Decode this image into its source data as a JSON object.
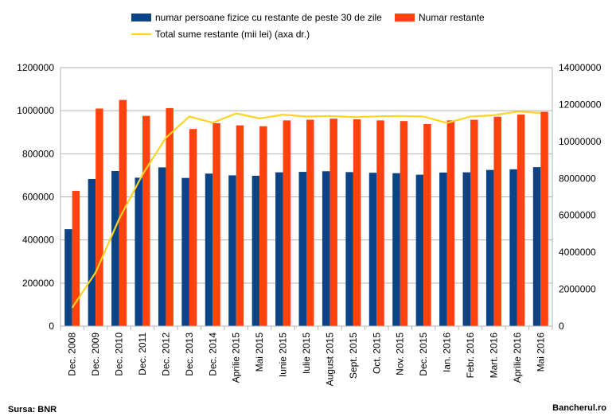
{
  "chart_data": {
    "type": "bar",
    "title": "",
    "categories": [
      "Dec. 2008",
      "Dec. 2009",
      "Dec. 2010",
      "Dec. 2011",
      "Dec. 2012",
      "Dec. 2013",
      "Dec. 2014",
      "Aprilie 2015",
      "Mai 2015",
      "Iunie 2015",
      "Iulie 2015",
      "August 2015",
      "Sept. 2015",
      "Oct. 2015",
      "Nov. 2015",
      "Dec. 2015",
      "Ian. 2016",
      "Febr. 2016",
      "Mart. 2016",
      "Aprilie 2016",
      "Mai 2016"
    ],
    "series": [
      {
        "name": "numar persoane fizice cu restante de peste 30 de zile",
        "type": "bar",
        "axis": "left",
        "color": "#0b4387",
        "values": [
          450000,
          683000,
          720000,
          689000,
          737000,
          688000,
          708000,
          700000,
          698000,
          714000,
          716000,
          719000,
          715000,
          712000,
          710000,
          703000,
          713000,
          714000,
          725000,
          728000,
          738000
        ]
      },
      {
        "name": "Numar restante",
        "type": "bar",
        "axis": "left",
        "color": "#ff420e",
        "values": [
          628000,
          1010000,
          1050000,
          976000,
          1012000,
          915000,
          942000,
          932000,
          928000,
          955000,
          958000,
          963000,
          960000,
          955000,
          952000,
          938000,
          955000,
          958000,
          972000,
          982000,
          995000
        ]
      },
      {
        "name": "Total sume restante (mii lei) (axa dr.)",
        "type": "line",
        "axis": "right",
        "color": "#ffd320",
        "values": [
          1000000,
          2900000,
          5800000,
          8200000,
          10200000,
          11350000,
          11020000,
          11520000,
          11250000,
          11450000,
          11350000,
          11380000,
          11320000,
          11360000,
          11380000,
          11350000,
          11000000,
          11350000,
          11420000,
          11620000,
          11550000
        ]
      }
    ],
    "left_axis": {
      "min": 0,
      "max": 1200000,
      "step": 200000
    },
    "right_axis": {
      "min": 0,
      "max": 14000000,
      "step": 2000000
    },
    "grid": true,
    "legend": "top-center"
  },
  "footer": {
    "source": "Sursa: BNR",
    "site": "Bancherul.ro"
  }
}
